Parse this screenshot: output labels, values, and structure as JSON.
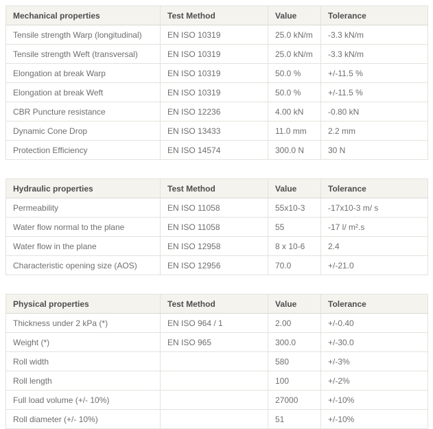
{
  "page": {
    "background_color": "#ffffff",
    "header_background_color": "#f4f3ee",
    "header_text_color": "#4d4d4d",
    "body_text_color": "#6e6e6e",
    "border_color": "#e3e2dd",
    "outer_border_color": "#d7d6d1"
  },
  "tables": [
    {
      "id": "mechanical-properties",
      "headers": [
        "Mechanical properties",
        "Test Method",
        "Value",
        "Tolerance"
      ],
      "rows": [
        [
          "Tensile strength Warp (longitudinal)",
          "EN ISO 10319",
          "25.0 kN/m",
          "-3.3 kN/m"
        ],
        [
          "Tensile strength Weft (transversal)",
          "EN ISO 10319",
          "25.0 kN/m",
          "-3.3 kN/m"
        ],
        [
          "Elongation at break Warp",
          "EN ISO 10319",
          "50.0 %",
          "+/-11.5 %"
        ],
        [
          "Elongation at break Weft",
          "EN ISO 10319",
          "50.0 %",
          "+/-11.5 %"
        ],
        [
          "CBR Puncture resistance",
          "EN ISO 12236",
          "4.00 kN",
          "-0.80 kN"
        ],
        [
          "Dynamic Cone Drop",
          "EN ISO 13433",
          "11.0 mm",
          "2.2 mm"
        ],
        [
          "Protection Efficiency",
          "EN ISO 14574",
          "300.0 N",
          "30 N"
        ]
      ]
    },
    {
      "id": "hydraulic-properties",
      "headers": [
        "Hydraulic properties",
        "Test Method",
        "Value",
        "Tolerance"
      ],
      "rows": [
        [
          "Permeability",
          "EN ISO 11058",
          "55x10-3",
          "-17x10-3 m/ s"
        ],
        [
          "Water flow normal to the plane",
          "EN ISO 11058",
          "55",
          "-17 l/ m².s"
        ],
        [
          "Water flow in the plane",
          "EN ISO 12958",
          "8 x 10-6",
          "2.4"
        ],
        [
          "Characteristic opening size (AOS)",
          "EN ISO 12956",
          "70.0",
          "+/-21.0"
        ]
      ]
    },
    {
      "id": "physical-properties",
      "headers": [
        "Physical properties",
        "Test Method",
        "Value",
        "Tolerance"
      ],
      "rows": [
        [
          "Thickness under 2 kPa (*)",
          "EN ISO 964 / 1",
          "2.00",
          "+/-0.40"
        ],
        [
          "Weight (*)",
          "EN ISO 965",
          "300.0",
          "+/-30.0"
        ],
        [
          "Roll width",
          "",
          "580",
          "+/-3%"
        ],
        [
          "Roll length",
          "",
          "100",
          "+/-2%"
        ],
        [
          "Full load volume (+/- 10%)",
          "",
          "27000",
          "+/-10%"
        ],
        [
          "Roll diameter (+/- 10%)",
          "",
          "51",
          "+/-10%"
        ]
      ]
    }
  ]
}
